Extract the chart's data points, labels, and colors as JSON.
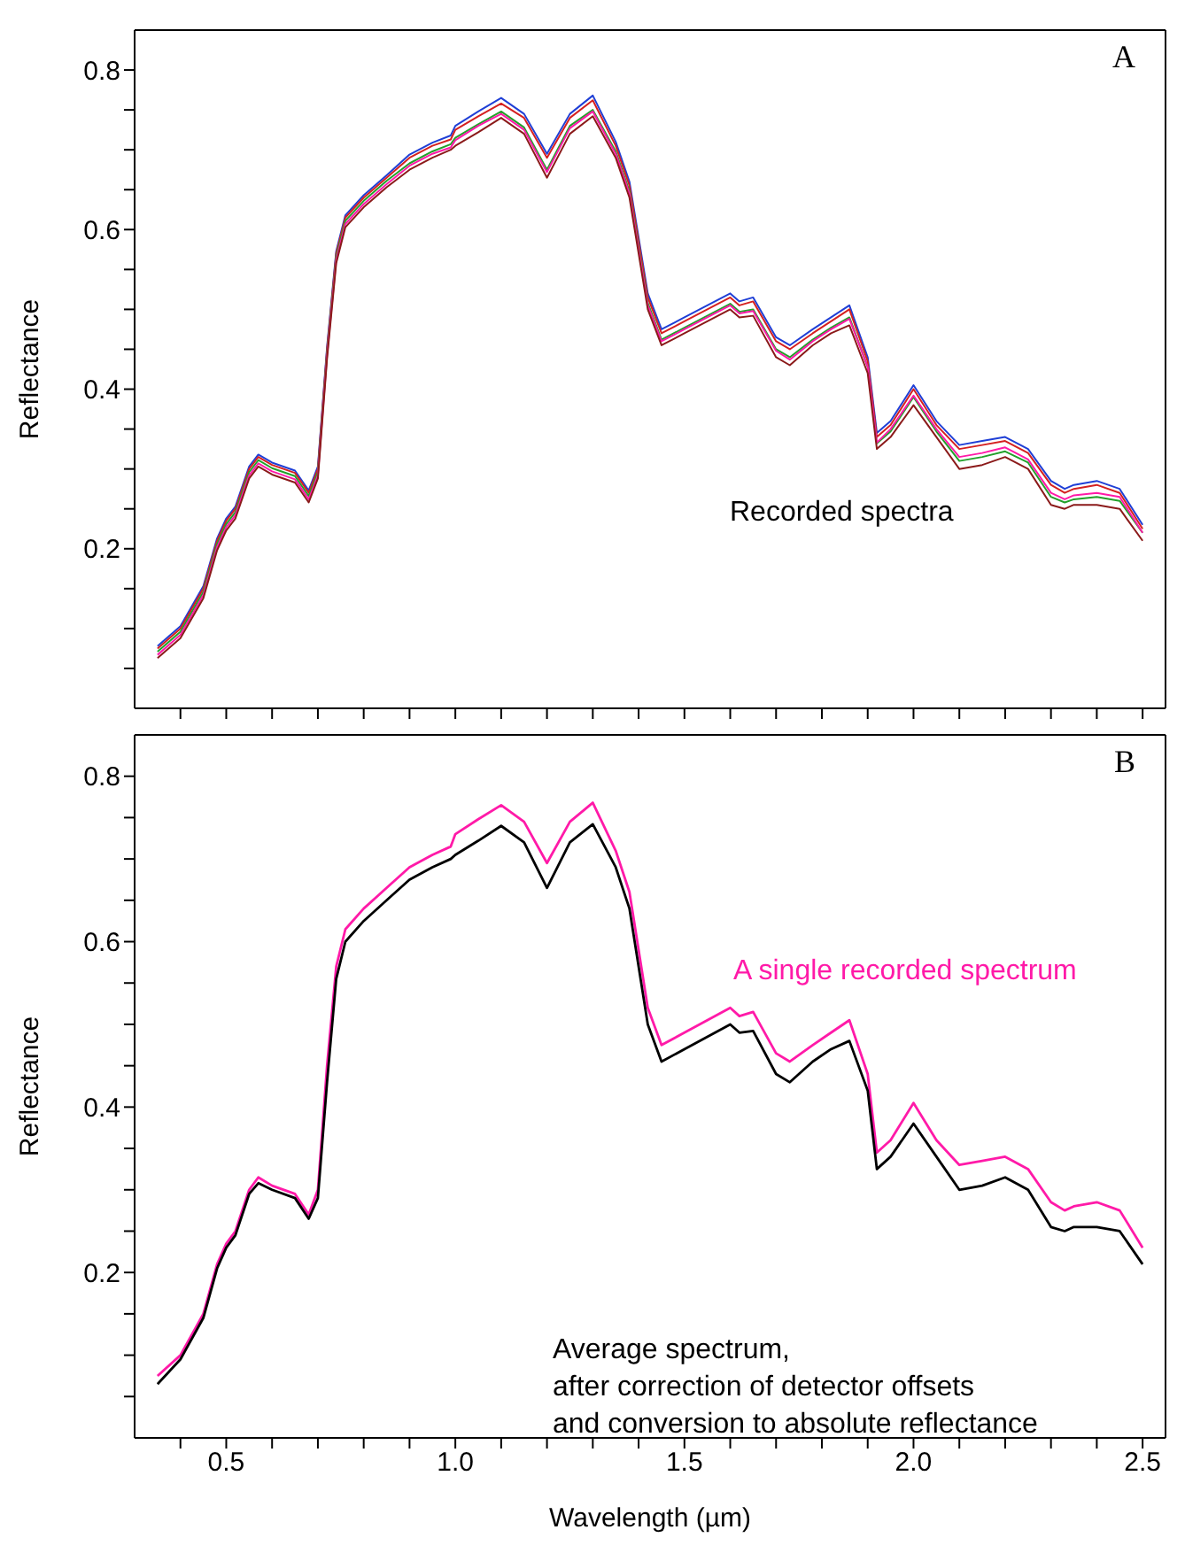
{
  "chart_data": [
    {
      "type": "line",
      "ylabel": "Reflectance",
      "annotations": [
        "A",
        "Recorded spectra"
      ],
      "tick_labels": "y",
      "xlim": [
        0.3,
        2.55
      ],
      "ylim": [
        0,
        0.85
      ],
      "xticks": [
        {
          "value": 0.4,
          "label": null
        },
        0.5,
        {
          "value": 0.6,
          "label": null
        },
        {
          "value": 0.7,
          "label": null
        },
        {
          "value": 0.8,
          "label": null
        },
        {
          "value": 0.9,
          "label": null
        },
        {
          "value": 1,
          "label": null
        },
        {
          "value": 1.1,
          "label": null
        },
        {
          "value": 1.2,
          "label": null
        },
        {
          "value": 1.3,
          "label": null
        },
        {
          "value": 1.4,
          "label": null
        },
        1.5,
        {
          "value": 1.6,
          "label": null
        },
        {
          "value": 1.7,
          "label": null
        },
        {
          "value": 1.8,
          "label": null
        },
        {
          "value": 1.9,
          "label": null
        },
        {
          "value": 2,
          "label": null
        },
        {
          "value": 2.1,
          "label": null
        },
        {
          "value": 2.2,
          "label": null
        },
        {
          "value": 2.3,
          "label": null
        },
        {
          "value": 2.4,
          "label": null
        },
        2.5
      ],
      "yticks": [
        {
          "value": 0.05,
          "label": null
        },
        {
          "value": 0.1,
          "label": null
        },
        {
          "value": 0.15,
          "label": null
        },
        0.2,
        {
          "value": 0.25,
          "label": null
        },
        {
          "value": 0.3,
          "label": null
        },
        {
          "value": 0.35,
          "label": null
        },
        0.4,
        {
          "value": 0.45,
          "label": null
        },
        {
          "value": 0.5,
          "label": null
        },
        {
          "value": 0.55,
          "label": null
        },
        0.6,
        {
          "value": 0.65,
          "label": null
        },
        {
          "value": 0.7,
          "label": null
        },
        {
          "value": 0.75,
          "label": null
        },
        0.8
      ],
      "x": [
        0.35,
        0.4,
        0.45,
        0.48,
        0.5,
        0.52,
        0.55,
        0.57,
        0.6,
        0.65,
        0.68,
        0.7,
        0.72,
        0.74,
        0.76,
        0.8,
        0.85,
        0.9,
        0.95,
        0.99,
        1.0,
        1.05,
        1.1,
        1.15,
        1.2,
        1.25,
        1.3,
        1.35,
        1.38,
        1.42,
        1.45,
        1.5,
        1.55,
        1.6,
        1.62,
        1.65,
        1.7,
        1.73,
        1.78,
        1.82,
        1.86,
        1.9,
        1.92,
        1.95,
        2.0,
        2.05,
        2.1,
        2.15,
        2.2,
        2.25,
        2.3,
        2.33,
        2.35,
        2.4,
        2.45,
        2.5
      ],
      "series": [
        {
          "color": "#1f3fd6",
          "values": [
            0.078,
            0.103,
            0.153,
            0.213,
            0.238,
            0.253,
            0.303,
            0.318,
            0.308,
            0.298,
            0.273,
            0.303,
            0.453,
            0.573,
            0.618,
            0.643,
            0.668,
            0.694,
            0.709,
            0.718,
            0.73,
            0.748,
            0.765,
            0.745,
            0.695,
            0.745,
            0.768,
            0.71,
            0.66,
            0.52,
            0.475,
            0.49,
            0.505,
            0.52,
            0.51,
            0.515,
            0.465,
            0.455,
            0.475,
            0.49,
            0.505,
            0.44,
            0.345,
            0.36,
            0.405,
            0.36,
            0.33,
            0.335,
            0.34,
            0.325,
            0.285,
            0.275,
            0.28,
            0.285,
            0.275,
            0.23
          ]
        },
        {
          "color": "#d42020",
          "values": [
            0.075,
            0.1,
            0.15,
            0.21,
            0.235,
            0.25,
            0.3,
            0.315,
            0.305,
            0.295,
            0.27,
            0.3,
            0.45,
            0.57,
            0.615,
            0.64,
            0.665,
            0.69,
            0.705,
            0.713,
            0.725,
            0.742,
            0.758,
            0.74,
            0.69,
            0.74,
            0.762,
            0.705,
            0.655,
            0.515,
            0.47,
            0.485,
            0.5,
            0.515,
            0.505,
            0.51,
            0.46,
            0.45,
            0.47,
            0.485,
            0.5,
            0.435,
            0.34,
            0.355,
            0.4,
            0.355,
            0.325,
            0.33,
            0.335,
            0.32,
            0.28,
            0.27,
            0.275,
            0.28,
            0.27,
            0.225
          ]
        },
        {
          "color": "#22a02a",
          "values": [
            0.071,
            0.096,
            0.146,
            0.206,
            0.231,
            0.246,
            0.296,
            0.311,
            0.301,
            0.291,
            0.266,
            0.296,
            0.446,
            0.566,
            0.611,
            0.636,
            0.661,
            0.683,
            0.698,
            0.707,
            0.715,
            0.732,
            0.748,
            0.728,
            0.675,
            0.73,
            0.75,
            0.698,
            0.648,
            0.508,
            0.462,
            0.477,
            0.492,
            0.507,
            0.497,
            0.5,
            0.45,
            0.44,
            0.462,
            0.477,
            0.49,
            0.428,
            0.332,
            0.347,
            0.39,
            0.347,
            0.31,
            0.315,
            0.322,
            0.308,
            0.265,
            0.258,
            0.262,
            0.265,
            0.26,
            0.22
          ]
        },
        {
          "color": "#ff1aa8",
          "values": [
            0.067,
            0.092,
            0.142,
            0.202,
            0.227,
            0.242,
            0.292,
            0.307,
            0.297,
            0.287,
            0.262,
            0.292,
            0.442,
            0.562,
            0.607,
            0.632,
            0.657,
            0.68,
            0.695,
            0.703,
            0.712,
            0.73,
            0.745,
            0.725,
            0.672,
            0.727,
            0.748,
            0.695,
            0.645,
            0.505,
            0.46,
            0.475,
            0.49,
            0.505,
            0.495,
            0.498,
            0.448,
            0.437,
            0.46,
            0.475,
            0.488,
            0.428,
            0.333,
            0.35,
            0.392,
            0.35,
            0.315,
            0.32,
            0.327,
            0.312,
            0.27,
            0.262,
            0.267,
            0.27,
            0.265,
            0.22
          ]
        },
        {
          "color": "#8b1a1a",
          "values": [
            0.063,
            0.088,
            0.138,
            0.198,
            0.223,
            0.238,
            0.288,
            0.303,
            0.293,
            0.283,
            0.258,
            0.288,
            0.438,
            0.558,
            0.603,
            0.628,
            0.653,
            0.675,
            0.69,
            0.7,
            0.705,
            0.722,
            0.74,
            0.72,
            0.665,
            0.72,
            0.742,
            0.69,
            0.64,
            0.5,
            0.455,
            0.47,
            0.485,
            0.5,
            0.49,
            0.492,
            0.44,
            0.43,
            0.455,
            0.47,
            0.48,
            0.42,
            0.325,
            0.34,
            0.38,
            0.34,
            0.3,
            0.305,
            0.315,
            0.3,
            0.255,
            0.25,
            0.255,
            0.255,
            0.25,
            0.21
          ]
        }
      ]
    },
    {
      "type": "line",
      "xlabel": "Wavelength (µm)",
      "ylabel": "Reflectance",
      "annotations": [
        "B"
      ],
      "xlim": [
        0.3,
        2.55
      ],
      "ylim": [
        0,
        0.85
      ],
      "xticks": [
        {
          "value": 0.4,
          "label": null
        },
        0.5,
        {
          "value": 0.6,
          "label": null
        },
        {
          "value": 0.7,
          "label": null
        },
        {
          "value": 0.8,
          "label": null
        },
        {
          "value": 0.9,
          "label": null
        },
        {
          "value": 1,
          "label": "1.0"
        },
        {
          "value": 1.1,
          "label": null
        },
        {
          "value": 1.2,
          "label": null
        },
        {
          "value": 1.3,
          "label": null
        },
        {
          "value": 1.4,
          "label": null
        },
        1.5,
        {
          "value": 1.6,
          "label": null
        },
        {
          "value": 1.7,
          "label": null
        },
        {
          "value": 1.8,
          "label": null
        },
        {
          "value": 1.9,
          "label": null
        },
        {
          "value": 2,
          "label": "2.0"
        },
        {
          "value": 2.1,
          "label": null
        },
        {
          "value": 2.2,
          "label": null
        },
        {
          "value": 2.3,
          "label": null
        },
        {
          "value": 2.4,
          "label": null
        },
        2.5
      ],
      "yticks": [
        {
          "value": 0.05,
          "label": null
        },
        {
          "value": 0.1,
          "label": null
        },
        {
          "value": 0.15,
          "label": null
        },
        0.2,
        {
          "value": 0.25,
          "label": null
        },
        {
          "value": 0.3,
          "label": null
        },
        {
          "value": 0.35,
          "label": null
        },
        0.4,
        {
          "value": 0.45,
          "label": null
        },
        {
          "value": 0.5,
          "label": null
        },
        {
          "value": 0.55,
          "label": null
        },
        0.6,
        {
          "value": 0.65,
          "label": null
        },
        {
          "value": 0.7,
          "label": null
        },
        {
          "value": 0.75,
          "label": null
        },
        0.8
      ],
      "x": [
        0.35,
        0.4,
        0.45,
        0.48,
        0.5,
        0.52,
        0.55,
        0.57,
        0.6,
        0.65,
        0.68,
        0.7,
        0.72,
        0.74,
        0.76,
        0.8,
        0.85,
        0.9,
        0.95,
        0.99,
        1.0,
        1.05,
        1.1,
        1.15,
        1.2,
        1.25,
        1.3,
        1.35,
        1.38,
        1.42,
        1.45,
        1.5,
        1.55,
        1.6,
        1.62,
        1.65,
        1.7,
        1.73,
        1.78,
        1.82,
        1.86,
        1.9,
        1.92,
        1.95,
        2.0,
        2.05,
        2.1,
        2.15,
        2.2,
        2.25,
        2.3,
        2.33,
        2.35,
        2.4,
        2.45,
        2.5
      ],
      "series": [
        {
          "name": "A single recorded spectrum",
          "color": "#ff1aa8",
          "values": [
            0.075,
            0.1,
            0.15,
            0.21,
            0.235,
            0.25,
            0.3,
            0.315,
            0.305,
            0.295,
            0.27,
            0.3,
            0.45,
            0.57,
            0.615,
            0.64,
            0.665,
            0.69,
            0.705,
            0.715,
            0.73,
            0.748,
            0.765,
            0.745,
            0.695,
            0.745,
            0.768,
            0.71,
            0.66,
            0.52,
            0.475,
            0.49,
            0.505,
            0.52,
            0.51,
            0.515,
            0.465,
            0.455,
            0.475,
            0.49,
            0.505,
            0.44,
            0.345,
            0.36,
            0.405,
            0.36,
            0.33,
            0.335,
            0.34,
            0.325,
            0.285,
            0.275,
            0.28,
            0.285,
            0.275,
            0.23
          ]
        },
        {
          "name": "Average spectrum,\nafter correction of detector offsets\nand conversion to absolute reflectance",
          "color": "#000000",
          "values": [
            0.065,
            0.095,
            0.145,
            0.205,
            0.23,
            0.245,
            0.295,
            0.308,
            0.3,
            0.29,
            0.265,
            0.29,
            0.43,
            0.555,
            0.6,
            0.625,
            0.65,
            0.675,
            0.69,
            0.7,
            0.705,
            0.722,
            0.74,
            0.72,
            0.665,
            0.72,
            0.742,
            0.69,
            0.64,
            0.5,
            0.455,
            0.47,
            0.485,
            0.5,
            0.49,
            0.492,
            0.44,
            0.43,
            0.455,
            0.47,
            0.48,
            0.42,
            0.325,
            0.34,
            0.38,
            0.34,
            0.3,
            0.305,
            0.315,
            0.3,
            0.255,
            0.25,
            0.255,
            0.255,
            0.25,
            0.21
          ]
        }
      ]
    }
  ]
}
